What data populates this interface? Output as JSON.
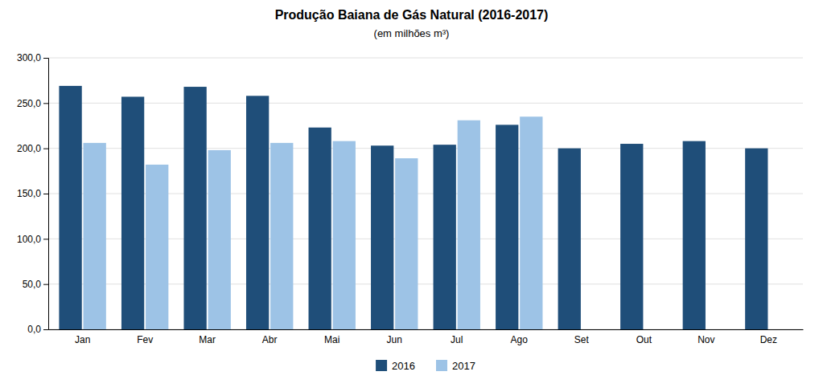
{
  "chart_data": {
    "type": "bar",
    "title": "Produção Baiana de Gás Natural (2016-2017)",
    "subtitle": "(em milhões m³)",
    "categories": [
      "Jan",
      "Fev",
      "Mar",
      "Abr",
      "Mai",
      "Jun",
      "Jul",
      "Ago",
      "Set",
      "Out",
      "Nov",
      "Dez"
    ],
    "series": [
      {
        "name": "2016",
        "color": "#1F4E79",
        "values": [
          269.0,
          257.0,
          268.0,
          258.0,
          223.0,
          203.0,
          204.0,
          226.0,
          200.0,
          205.0,
          208.0,
          200.0
        ]
      },
      {
        "name": "2017",
        "color": "#9DC3E6",
        "values": [
          206.0,
          182.0,
          198.0,
          206.0,
          208.0,
          189.0,
          231.0,
          235.0,
          null,
          null,
          null,
          null
        ]
      }
    ],
    "ylim": [
      0,
      300
    ],
    "yticks": [
      {
        "value": 0,
        "label": "0,0"
      },
      {
        "value": 50,
        "label": "50,0"
      },
      {
        "value": 100,
        "label": "100,0"
      },
      {
        "value": 150,
        "label": "150,0"
      },
      {
        "value": 200,
        "label": "200,0"
      },
      {
        "value": 250,
        "label": "250,0"
      },
      {
        "value": 300,
        "label": "300,0"
      }
    ],
    "grid": true,
    "legend": "bottom"
  }
}
